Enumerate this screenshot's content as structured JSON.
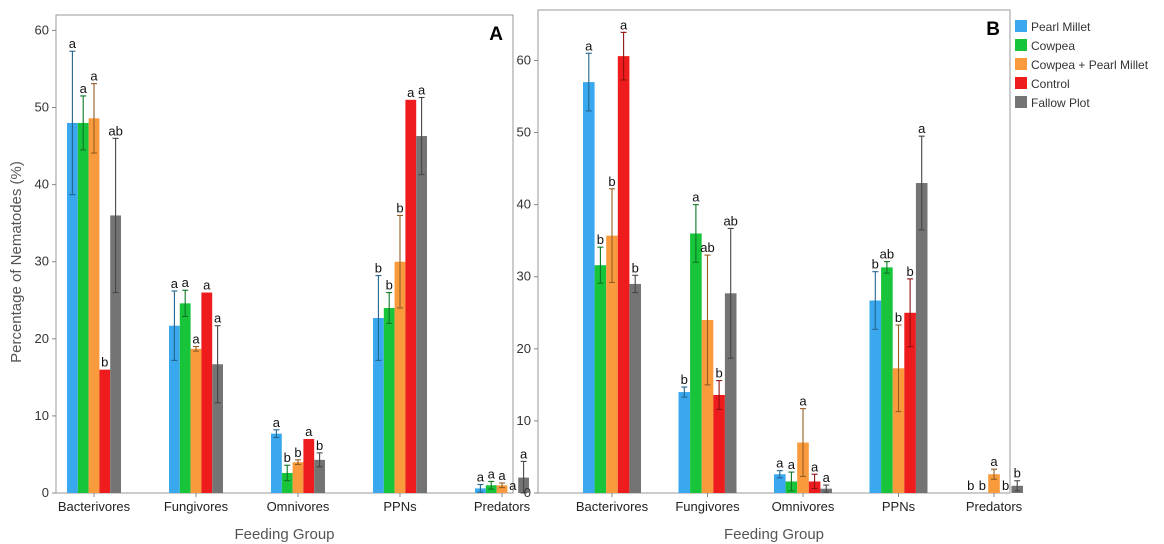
{
  "ylabel": "Percentage of Nematodes (%)",
  "legend": {
    "placement": "right",
    "entries": [
      "Pearl Millet",
      "Cowpea",
      "Cowpea + Pearl Millet",
      "Control",
      "Fallow Plot"
    ]
  },
  "colors": {
    "Pearl Millet": "#3aa8ee",
    "Cowpea": "#18c43a",
    "Cowpea + Pearl Millet": "#f99b3c",
    "Control": "#ee1c1c",
    "Fallow Plot": "#747474"
  },
  "chart_data": [
    {
      "type": "bar",
      "panel_label": "A",
      "xlabel": "Feeding Group",
      "ylabel": "Percentage of Nematodes (%)",
      "ylim": [
        0,
        62
      ],
      "yticks": [
        0,
        10,
        20,
        30,
        40,
        50,
        60
      ],
      "categories": [
        "Bacterivores",
        "Fungivores",
        "Omnivores",
        "PPNs",
        "Predators"
      ],
      "series": [
        {
          "name": "Pearl Millet",
          "values": [
            48,
            21.7,
            7.7,
            22.7,
            0.6
          ],
          "errors": [
            9.3,
            4.5,
            0.5,
            5.5,
            0.5
          ],
          "letters": [
            "a",
            "a",
            "a",
            "b",
            "a"
          ]
        },
        {
          "name": "Cowpea",
          "values": [
            48,
            24.6,
            2.6,
            24,
            1.0
          ],
          "errors": [
            3.5,
            1.7,
            1.0,
            2.0,
            0.5
          ],
          "letters": [
            "a",
            "a",
            "b",
            "b",
            "a"
          ]
        },
        {
          "name": "Cowpea + Pearl Millet",
          "values": [
            48.6,
            18.7,
            4.0,
            30,
            1.0
          ],
          "errors": [
            4.5,
            0.3,
            0.3,
            6.0,
            0.3
          ],
          "letters": [
            "a",
            "a",
            "b",
            "b",
            "a"
          ]
        },
        {
          "name": "Control",
          "values": [
            16,
            26,
            7.0,
            51,
            0.0
          ],
          "errors": [
            0,
            0,
            0,
            0,
            0
          ],
          "letters": [
            "b",
            "a",
            "a",
            "a",
            "a"
          ]
        },
        {
          "name": "Fallow Plot",
          "values": [
            36,
            16.7,
            4.3,
            46.3,
            2.0
          ],
          "errors": [
            10,
            5.0,
            0.9,
            5.0,
            2.1
          ],
          "letters": [
            "ab",
            "a",
            "b",
            "a",
            "a"
          ]
        }
      ]
    },
    {
      "type": "bar",
      "panel_label": "B",
      "xlabel": "Feeding Group",
      "ylabel": "",
      "ylim": [
        0,
        67
      ],
      "yticks": [
        0,
        10,
        20,
        30,
        40,
        50,
        60
      ],
      "categories": [
        "Bacterivores",
        "Fungivores",
        "Omnivores",
        "PPNs",
        "Predators"
      ],
      "series": [
        {
          "name": "Pearl Millet",
          "values": [
            57,
            14,
            2.6,
            26.7,
            0.0
          ],
          "errors": [
            4,
            0.7,
            0.5,
            4,
            0
          ],
          "letters": [
            "a",
            "b",
            "a",
            "b",
            "b"
          ]
        },
        {
          "name": "Cowpea",
          "values": [
            31.6,
            36,
            1.6,
            31.3,
            0.0
          ],
          "errors": [
            2.5,
            4,
            1.3,
            0.8,
            0
          ],
          "letters": [
            "b",
            "a",
            "a",
            "ab",
            "b"
          ]
        },
        {
          "name": "Cowpea + Pearl Millet",
          "values": [
            35.7,
            24,
            7,
            17.3,
            2.6
          ],
          "errors": [
            6.5,
            9,
            4.7,
            6,
            0.7
          ],
          "letters": [
            "b",
            "ab",
            "a",
            "b",
            "a"
          ]
        },
        {
          "name": "Control",
          "values": [
            60.6,
            13.6,
            1.6,
            25,
            0.0
          ],
          "errors": [
            3.3,
            2,
            1.0,
            4.7,
            0
          ],
          "letters": [
            "a",
            "b",
            "a",
            "b",
            "b"
          ]
        },
        {
          "name": "Fallow Plot",
          "values": [
            29,
            27.7,
            0.6,
            43,
            1.0
          ],
          "errors": [
            1.2,
            9,
            0.5,
            6.5,
            0.7
          ],
          "letters": [
            "b",
            "ab",
            "a",
            "a",
            "b"
          ]
        }
      ]
    }
  ]
}
